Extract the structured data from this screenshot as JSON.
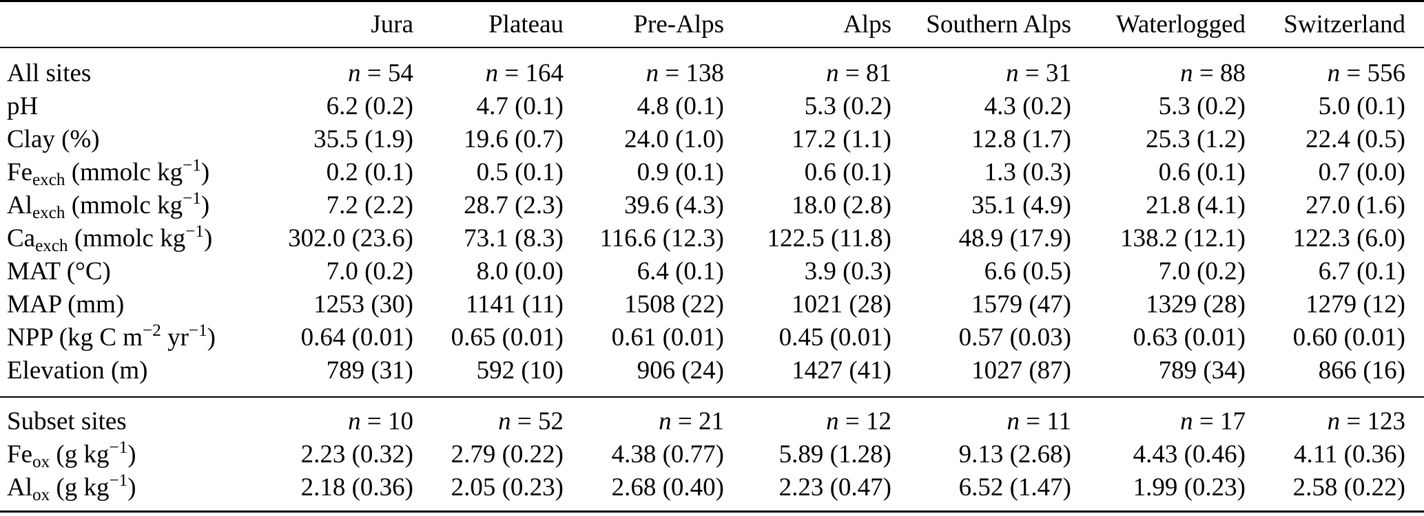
{
  "table": {
    "corner_label": "",
    "columns": [
      "Jura",
      "Plateau",
      "Pre-Alps",
      "Alps",
      "Southern Alps",
      "Waterlogged",
      "Switzerland"
    ],
    "text_color": "#000000",
    "background_color": "#ffffff",
    "sections": [
      {
        "name": "all-sites",
        "rows": [
          {
            "label": [
              {
                "t": "All sites"
              }
            ],
            "n_row": true,
            "values": [
              "n = 54",
              "n = 164",
              "n = 138",
              "n = 81",
              "n = 31",
              "n = 88",
              "n = 556"
            ]
          },
          {
            "label": [
              {
                "t": "pH"
              }
            ],
            "values": [
              "6.2 (0.2)",
              "4.7 (0.1)",
              "4.8 (0.1)",
              "5.3 (0.2)",
              "4.3 (0.2)",
              "5.3 (0.2)",
              "5.0 (0.1)"
            ]
          },
          {
            "label": [
              {
                "t": "Clay (%)"
              }
            ],
            "values": [
              "35.5 (1.9)",
              "19.6 (0.7)",
              "24.0 (1.0)",
              "17.2 (1.1)",
              "12.8 (1.7)",
              "25.3 (1.2)",
              "22.4 (0.5)"
            ]
          },
          {
            "label": [
              {
                "t": "Fe"
              },
              {
                "sub": "exch"
              },
              {
                "t": " (mmolc kg"
              },
              {
                "sup": "−1"
              },
              {
                "t": ")"
              }
            ],
            "values": [
              "0.2 (0.1)",
              "0.5 (0.1)",
              "0.9 (0.1)",
              "0.6 (0.1)",
              "1.3 (0.3)",
              "0.6 (0.1)",
              "0.7 (0.0)"
            ]
          },
          {
            "label": [
              {
                "t": "Al"
              },
              {
                "sub": "exch"
              },
              {
                "t": " (mmolc kg"
              },
              {
                "sup": "−1"
              },
              {
                "t": ")"
              }
            ],
            "values": [
              "7.2 (2.2)",
              "28.7 (2.3)",
              "39.6 (4.3)",
              "18.0 (2.8)",
              "35.1 (4.9)",
              "21.8 (4.1)",
              "27.0 (1.6)"
            ]
          },
          {
            "label": [
              {
                "t": "Ca"
              },
              {
                "sub": "exch"
              },
              {
                "t": " (mmolc kg"
              },
              {
                "sup": "−1"
              },
              {
                "t": ")"
              }
            ],
            "values": [
              "302.0 (23.6)",
              "73.1 (8.3)",
              "116.6 (12.3)",
              "122.5 (11.8)",
              "48.9 (17.9)",
              "138.2 (12.1)",
              "122.3 (6.0)"
            ]
          },
          {
            "label": [
              {
                "t": "MAT (°C)"
              }
            ],
            "values": [
              "7.0 (0.2)",
              "8.0 (0.0)",
              "6.4 (0.1)",
              "3.9 (0.3)",
              "6.6 (0.5)",
              "7.0 (0.2)",
              "6.7 (0.1)"
            ]
          },
          {
            "label": [
              {
                "t": "MAP (mm)"
              }
            ],
            "values": [
              "1253 (30)",
              "1141 (11)",
              "1508 (22)",
              "1021 (28)",
              "1579 (47)",
              "1329 (28)",
              "1279 (12)"
            ]
          },
          {
            "label": [
              {
                "t": "NPP (kg C m"
              },
              {
                "sup": "−2"
              },
              {
                "t": " yr"
              },
              {
                "sup": "−1"
              },
              {
                "t": ")"
              }
            ],
            "values": [
              "0.64 (0.01)",
              "0.65 (0.01)",
              "0.61 (0.01)",
              "0.45 (0.01)",
              "0.57 (0.03)",
              "0.63 (0.01)",
              "0.60 (0.01)"
            ]
          },
          {
            "label": [
              {
                "t": "Elevation (m)"
              }
            ],
            "values": [
              "789 (31)",
              "592 (10)",
              "906 (24)",
              "1427 (41)",
              "1027 (87)",
              "789 (34)",
              "866 (16)"
            ]
          }
        ]
      },
      {
        "name": "subset-sites",
        "rows": [
          {
            "label": [
              {
                "t": "Subset sites"
              }
            ],
            "n_row": true,
            "values": [
              "n = 10",
              "n = 52",
              "n = 21",
              "n = 12",
              "n = 11",
              "n = 17",
              "n = 123"
            ]
          },
          {
            "label": [
              {
                "t": "Fe"
              },
              {
                "sub": "ox"
              },
              {
                "t": " (g kg"
              },
              {
                "sup": "−1"
              },
              {
                "t": ")"
              }
            ],
            "values": [
              "2.23 (0.32)",
              "2.79 (0.22)",
              "4.38 (0.77)",
              "5.89 (1.28)",
              "9.13 (2.68)",
              "4.43 (0.46)",
              "4.11 (0.36)"
            ]
          },
          {
            "label": [
              {
                "t": "Al"
              },
              {
                "sub": "ox"
              },
              {
                "t": " (g kg"
              },
              {
                "sup": "−1"
              },
              {
                "t": ")"
              }
            ],
            "values": [
              "2.18 (0.36)",
              "2.05 (0.23)",
              "2.68 (0.40)",
              "2.23 (0.47)",
              "6.52 (1.47)",
              "1.99 (0.23)",
              "2.58 (0.22)"
            ]
          }
        ]
      }
    ]
  }
}
